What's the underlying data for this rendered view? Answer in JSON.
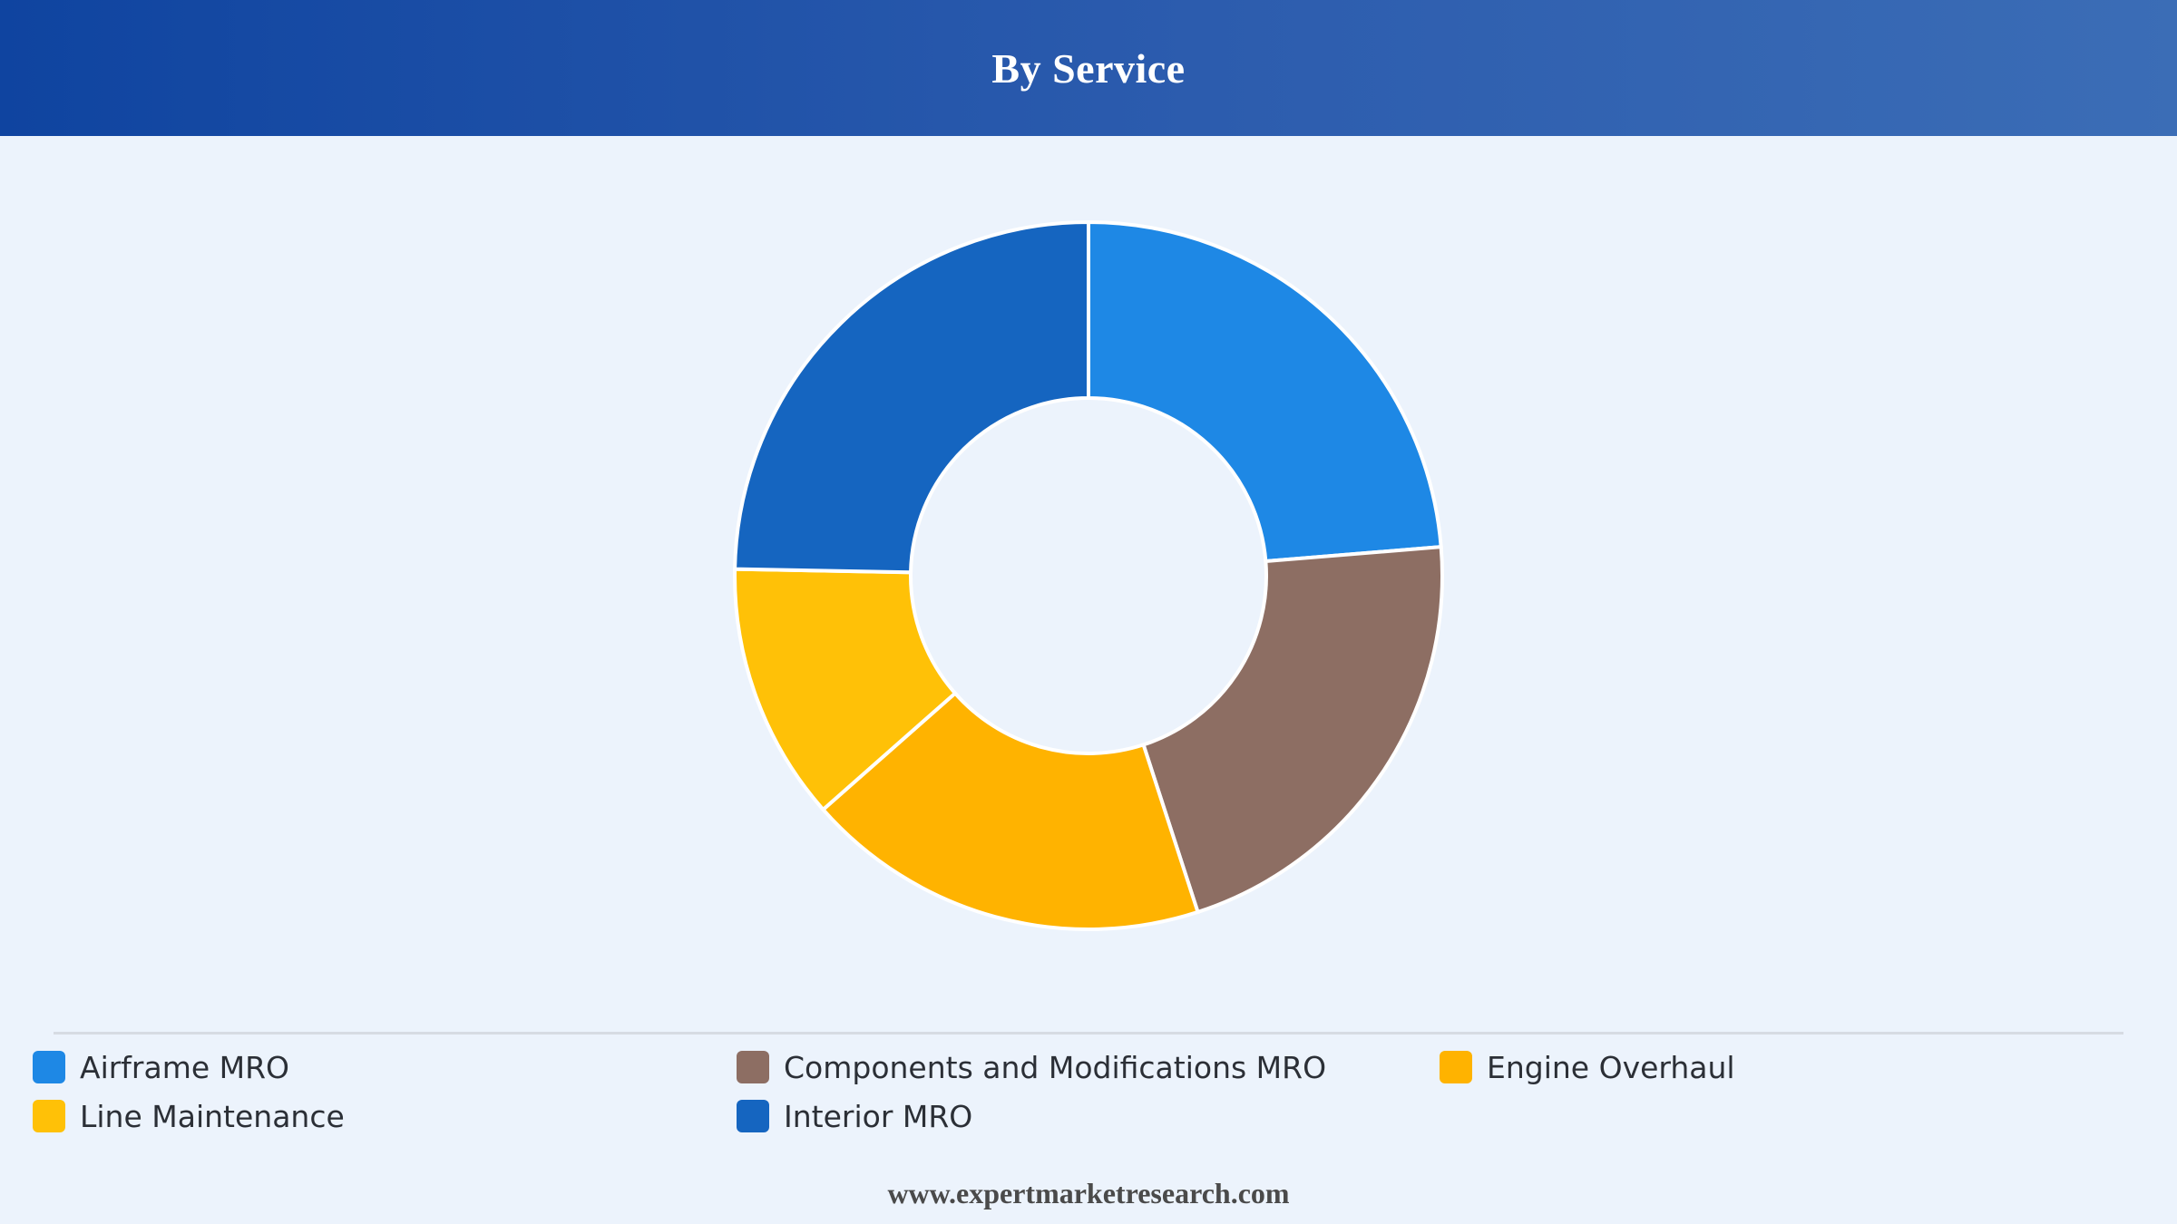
{
  "header": {
    "title": "By Service"
  },
  "chart_data": {
    "type": "pie",
    "variant": "donut",
    "title": "",
    "categories": [
      "Airframe MRO",
      "Components and Modifications MRO",
      "Engine Overhaul",
      "Line Maintenance",
      "Interior MRO"
    ],
    "values": [
      23.7,
      21.3,
      18.5,
      11.8,
      24.7
    ],
    "unit": "%",
    "colors": [
      "#1e88e5",
      "#8d6e63",
      "#ffb300",
      "#ffc107",
      "#1565c0"
    ],
    "legend_placement": "bottom"
  },
  "footer": {
    "url": "www.expertmarketresearch.com"
  }
}
